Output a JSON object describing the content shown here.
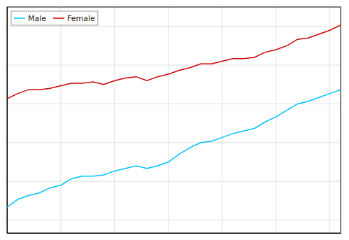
{
  "chart_data": {
    "type": "line",
    "x": [
      1980,
      1981,
      1982,
      1983,
      1984,
      1985,
      1986,
      1987,
      1988,
      1989,
      1990,
      1991,
      1992,
      1993,
      1994,
      1995,
      1996,
      1997,
      1998,
      1999,
      2000,
      2001,
      2002,
      2003,
      2004,
      2005,
      2006,
      2007,
      2008,
      2009,
      2010,
      2011
    ],
    "series": [
      {
        "name": "Male",
        "color": "#00bfff",
        "values": [
          69.0,
          69.6,
          69.9,
          70.1,
          70.5,
          70.7,
          71.2,
          71.4,
          71.4,
          71.5,
          71.8,
          72.0,
          72.2,
          72.0,
          72.2,
          72.5,
          73.1,
          73.6,
          74.0,
          74.1,
          74.4,
          74.7,
          74.9,
          75.1,
          75.6,
          76.0,
          76.5,
          77.0,
          77.2,
          77.5,
          77.8,
          78.1
        ]
      },
      {
        "name": "Female",
        "color": "#cc0000",
        "values": [
          77.4,
          77.8,
          78.1,
          78.1,
          78.2,
          78.4,
          78.6,
          78.6,
          78.7,
          78.5,
          78.8,
          79.0,
          79.1,
          78.8,
          79.1,
          79.3,
          79.6,
          79.8,
          80.1,
          80.1,
          80.3,
          80.5,
          80.5,
          80.6,
          81.0,
          81.2,
          81.5,
          82.0,
          82.1,
          82.4,
          82.7,
          83.1
        ]
      }
    ],
    "xlim": [
      1980,
      2011
    ],
    "ylim": [
      67.0,
      84.5
    ],
    "xticks": [
      1980,
      1985,
      1990,
      1995,
      2000,
      2005,
      2010
    ],
    "yticks": [
      68,
      71,
      74,
      77,
      80,
      83
    ],
    "grid": true,
    "tick_labels": false,
    "legend": "top-left"
  }
}
